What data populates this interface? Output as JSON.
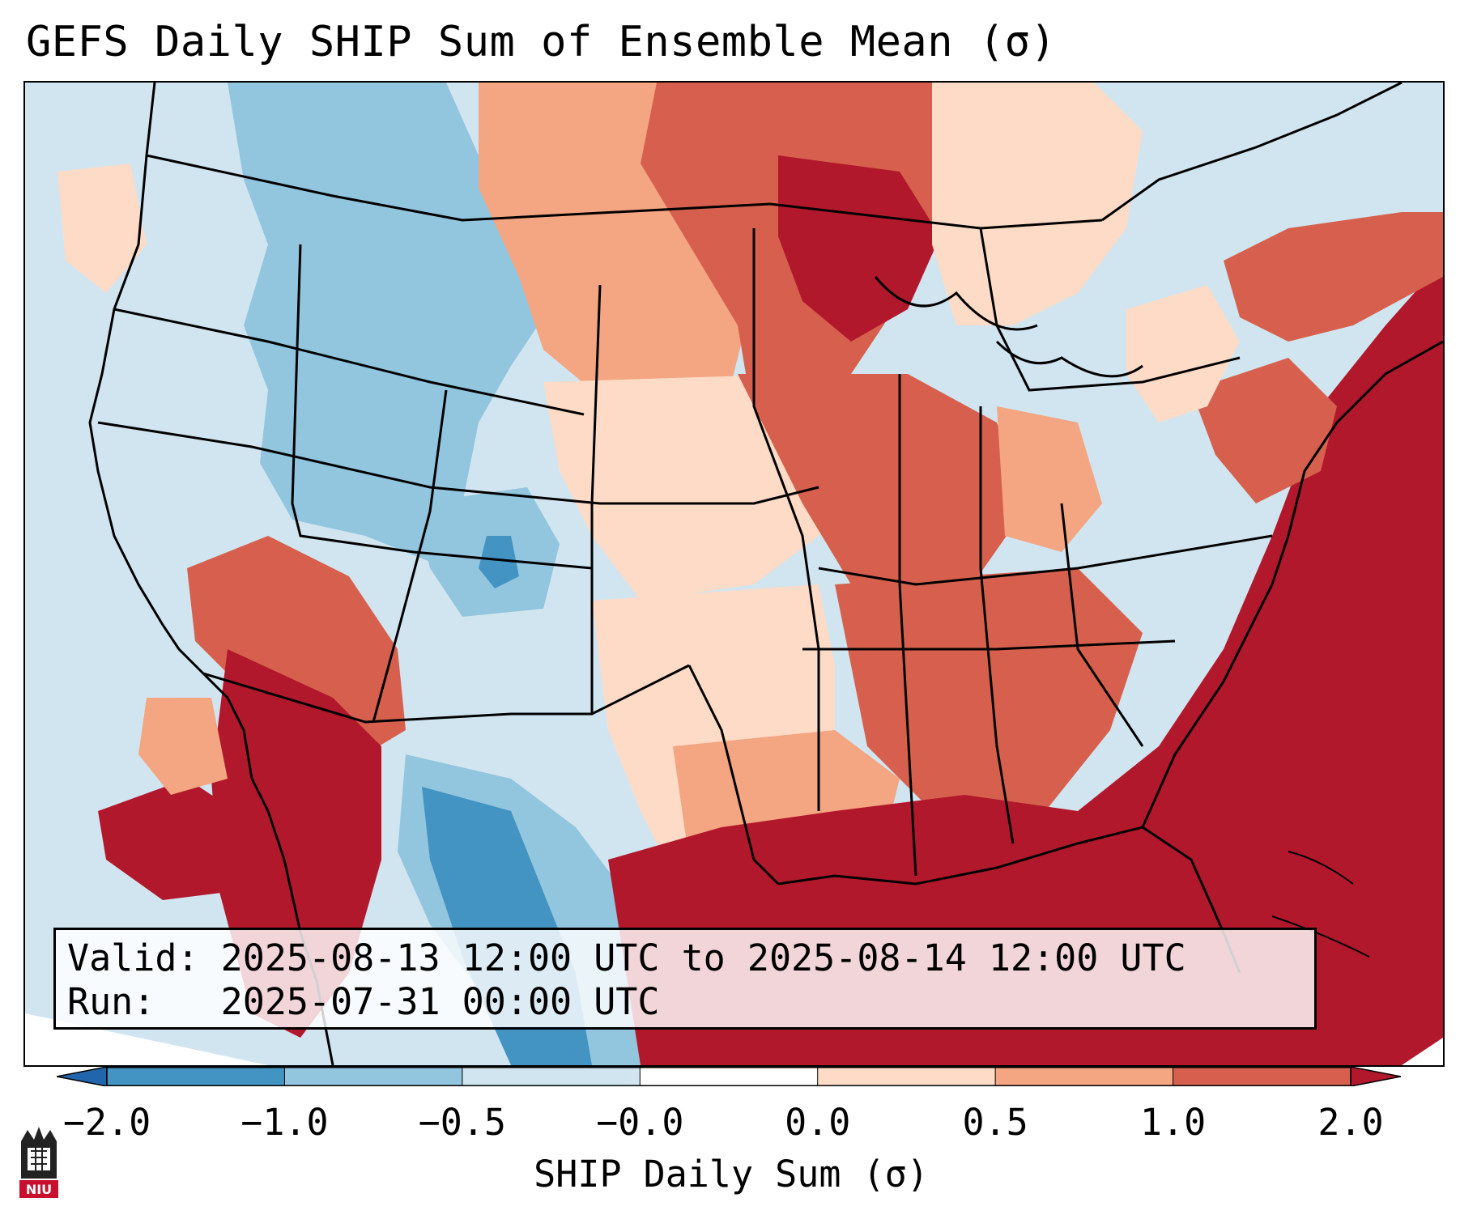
{
  "title": "GEFS Daily SHIP Sum of Ensemble Mean (σ)",
  "info": {
    "valid": "Valid: 2025-08-13 12:00 UTC to 2025-08-14 12:00 UTC",
    "run": "Run:   2025-07-31 00:00 UTC"
  },
  "colorbar": {
    "label": "SHIP Daily Sum (σ)",
    "ticks": [
      "−2.0",
      "−1.0",
      "−0.5",
      "−0.0",
      "0.0",
      "0.5",
      "1.0",
      "2.0"
    ],
    "colors": [
      "#2166ac",
      "#4393c3",
      "#92c5de",
      "#d1e5f0",
      "#ffffff",
      "#fddbc7",
      "#f4a582",
      "#d6604d",
      "#b2182b"
    ]
  },
  "logo_text": "NIU",
  "colors": {
    "deep_red": "#b2182b",
    "red": "#d6604d",
    "salmon": "#f4a582",
    "peach": "#fddbc7",
    "pale_blue": "#d1e5f0",
    "light_blue": "#92c5de",
    "blue": "#4393c3",
    "dark_blue": "#2166ac"
  }
}
